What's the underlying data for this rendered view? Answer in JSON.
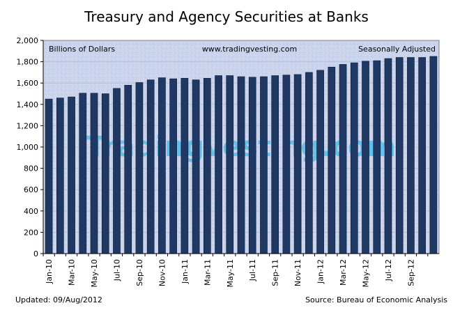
{
  "chart_data": {
    "type": "bar",
    "title": "Treasury and Agency Securities at Banks",
    "ylabel": "Billions of Dollars",
    "xlabel": "",
    "ylim": [
      0,
      2000
    ],
    "ytick_step": 200,
    "grid": true,
    "legend": "none",
    "annotations": {
      "left": "Billions of Dollars",
      "center": "www.tradingvesting.com",
      "right": "Seasonally Adjusted",
      "watermark": "Tradingvesting.com"
    },
    "categories": [
      "Jan-10",
      "Feb-10",
      "Mar-10",
      "Apr-10",
      "May-10",
      "Jun-10",
      "Jul-10",
      "Aug-10",
      "Sep-10",
      "Oct-10",
      "Nov-10",
      "Dec-10",
      "Jan-11",
      "Feb-11",
      "Mar-11",
      "Apr-11",
      "May-11",
      "Jun-11",
      "Jul-11",
      "Aug-11",
      "Sep-11",
      "Oct-11",
      "Nov-11",
      "Dec-11",
      "Jan-12",
      "Feb-12",
      "Mar-12",
      "Apr-12",
      "May-12",
      "Jun-12",
      "Jul-12",
      "Aug-12",
      "Sep-12",
      "Oct-12",
      "Nov-12"
    ],
    "tick_labels": [
      "Jan-10",
      "",
      "Mar-10",
      "",
      "May-10",
      "",
      "Jul-10",
      "",
      "Sep-10",
      "",
      "Nov-10",
      "",
      "Jan-11",
      "",
      "Mar-11",
      "",
      "May-11",
      "",
      "Jul-11",
      "",
      "Sep-11",
      "",
      "Nov-11",
      "",
      "Jan-12",
      "",
      "Mar-12",
      "",
      "May-12",
      "",
      "Jul-12",
      "",
      "Sep-12",
      "",
      ""
    ],
    "values": [
      1450,
      1460,
      1470,
      1505,
      1505,
      1500,
      1550,
      1580,
      1605,
      1630,
      1650,
      1640,
      1645,
      1630,
      1645,
      1670,
      1670,
      1660,
      1655,
      1660,
      1670,
      1675,
      1680,
      1700,
      1720,
      1750,
      1775,
      1790,
      1805,
      1810,
      1830,
      1840,
      1840,
      1840,
      1850
    ],
    "bar_color": "#1f3864",
    "grid_color": "#b8c0d8",
    "plot_background": "#c9d3ec"
  },
  "footer": {
    "updated": "Updated: 09/Aug/2012",
    "source": "Source: Bureau of Economic Analysis"
  }
}
